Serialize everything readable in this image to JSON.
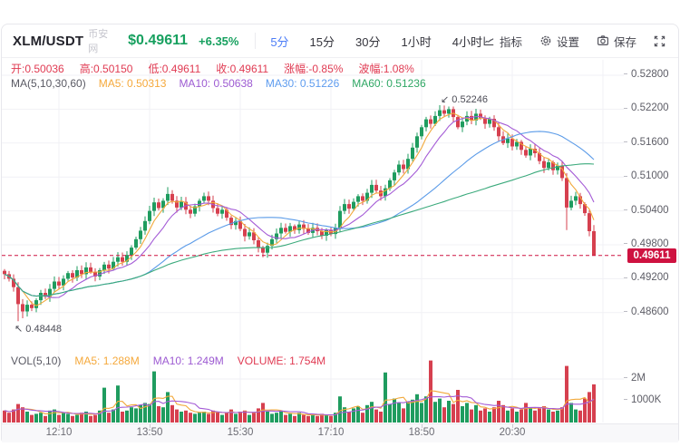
{
  "header": {
    "pair": "XLM/USDT",
    "exchange": "币安网",
    "price": "$0.49611",
    "change": "+6.35%",
    "intervals": [
      "5分",
      "15分",
      "30分",
      "1小时",
      "4小时"
    ],
    "active_interval": "5分",
    "tools": {
      "indicator": "指标",
      "settings": "设置",
      "save": "保存"
    }
  },
  "ohlc": [
    {
      "label": "开",
      "value": "0.50036"
    },
    {
      "label": "高",
      "value": "0.50150"
    },
    {
      "label": "低",
      "value": "0.49611"
    },
    {
      "label": "收",
      "value": "0.49611"
    },
    {
      "label": "涨幅",
      "value": "-0.85%"
    },
    {
      "label": "波幅",
      "value": "1.08%"
    }
  ],
  "ma_legend": [
    {
      "text": "MA(5,10,30,60)",
      "color": "#5a5a64"
    },
    {
      "text": "MA5: 0.50313",
      "color": "#f5a93c"
    },
    {
      "text": "MA10: 0.50638",
      "color": "#9d5bd2"
    },
    {
      "text": "MA30: 0.51226",
      "color": "#5e9cef"
    },
    {
      "text": "MA60: 0.51236",
      "color": "#2fa764"
    }
  ],
  "vol_legend": [
    {
      "text": "VOL(5,10)",
      "color": "#5a5a64"
    },
    {
      "text": "MA5: 1.288M",
      "color": "#f5a93c"
    },
    {
      "text": "MA10: 1.249M",
      "color": "#9d5bd2"
    },
    {
      "text": "VOLUME: 1.754M",
      "color": "#e03a52"
    }
  ],
  "chart_data": {
    "type": "candlestick",
    "title": "XLM/USDT 5分 K线",
    "y_axis_labels": [
      "0.52800",
      "0.52200",
      "0.51600",
      "0.51000",
      "0.50400",
      "0.49800",
      "0.49200",
      "0.48600"
    ],
    "ylim": [
      0.4845,
      0.5285
    ],
    "x_axis_labels": [
      "12:10",
      "13:50",
      "15:30",
      "17:10",
      "18:50",
      "20:30"
    ],
    "volume_axis_labels": [
      "2M",
      "1000K"
    ],
    "price_line": {
      "value": 0.49611,
      "label": "0.49611"
    },
    "annotations": [
      {
        "kind": "high",
        "label": "0.52246",
        "value": 0.52246,
        "index": 98
      },
      {
        "kind": "low",
        "label": "0.48448",
        "value": 0.48448,
        "index": 3
      }
    ],
    "candles": {
      "first_open": 0.4934,
      "closes": [
        0.4928,
        0.492,
        0.4905,
        0.4875,
        0.4862,
        0.4874,
        0.4868,
        0.4882,
        0.4895,
        0.4888,
        0.4902,
        0.4915,
        0.4908,
        0.492,
        0.493,
        0.4922,
        0.4935,
        0.4928,
        0.494,
        0.4932,
        0.4924,
        0.4935,
        0.4945,
        0.4938,
        0.495,
        0.4958,
        0.495,
        0.4962,
        0.4975,
        0.499,
        0.5005,
        0.5022,
        0.504,
        0.5055,
        0.5045,
        0.5058,
        0.507,
        0.5058,
        0.5046,
        0.5056,
        0.5042,
        0.5035,
        0.5048,
        0.5058,
        0.5066,
        0.5058,
        0.5045,
        0.5035,
        0.5042,
        0.5028,
        0.5015,
        0.5022,
        0.5008,
        0.4995,
        0.5002,
        0.4988,
        0.4975,
        0.4966,
        0.4978,
        0.499,
        0.5,
        0.501,
        0.5003,
        0.5013,
        0.5006,
        0.5016,
        0.5008,
        0.5001,
        0.501,
        0.5004,
        0.4996,
        0.5006,
        0.4999,
        0.501,
        0.504,
        0.5052,
        0.5044,
        0.5056,
        0.5066,
        0.5058,
        0.5072,
        0.5086,
        0.5076,
        0.5066,
        0.508,
        0.5094,
        0.5108,
        0.5122,
        0.5114,
        0.5132,
        0.5152,
        0.5172,
        0.5188,
        0.5202,
        0.5194,
        0.5208,
        0.5218,
        0.5212,
        0.522,
        0.5206,
        0.5188,
        0.5198,
        0.5208,
        0.52,
        0.5212,
        0.5204,
        0.5194,
        0.5203,
        0.5188,
        0.5172,
        0.516,
        0.5168,
        0.5154,
        0.5162,
        0.5148,
        0.5138,
        0.515,
        0.5142,
        0.5128,
        0.5116,
        0.5126,
        0.5112,
        0.512,
        0.5098,
        0.5046,
        0.5058,
        0.5066,
        0.5052,
        0.5036,
        0.5004,
        0.49611
      ],
      "wick_overrides": {
        "3": {
          "l": 0.48448
        },
        "4": {
          "l": 0.485
        },
        "36": {
          "h": 0.5082
        },
        "57": {
          "l": 0.4958
        },
        "98": {
          "h": 0.52246
        },
        "124": {
          "l": 0.5006
        },
        "130": {
          "h": 0.5015,
          "l": 0.49611
        }
      }
    },
    "volumes_millions": [
      0.55,
      0.45,
      0.6,
      0.85,
      0.7,
      0.5,
      0.35,
      0.4,
      0.45,
      0.3,
      0.55,
      0.6,
      0.35,
      0.45,
      0.4,
      0.3,
      0.35,
      0.45,
      0.5,
      0.3,
      0.35,
      0.55,
      1.6,
      0.45,
      0.6,
      1.7,
      0.5,
      0.55,
      0.7,
      0.65,
      0.8,
      0.9,
      0.85,
      2.35,
      0.75,
      0.7,
      1.4,
      0.8,
      0.6,
      0.5,
      0.55,
      0.45,
      0.4,
      0.45,
      0.5,
      0.4,
      0.55,
      0.5,
      0.35,
      0.45,
      0.6,
      0.4,
      0.5,
      0.55,
      0.35,
      0.45,
      0.65,
      0.9,
      0.5,
      0.4,
      0.45,
      0.55,
      0.35,
      0.4,
      0.3,
      0.45,
      0.35,
      0.3,
      0.35,
      0.3,
      0.4,
      0.35,
      0.3,
      0.45,
      1.2,
      0.7,
      0.5,
      0.65,
      0.75,
      0.45,
      0.8,
      0.95,
      0.6,
      0.5,
      2.3,
      0.85,
      1.1,
      0.9,
      0.65,
      0.95,
      1.05,
      1.3,
      0.9,
      1.2,
      2.85,
      0.95,
      1.1,
      0.7,
      1.0,
      0.85,
      1.5,
      0.75,
      0.9,
      0.6,
      0.8,
      0.55,
      0.65,
      0.5,
      0.7,
      1.0,
      0.8,
      0.55,
      0.65,
      0.5,
      0.6,
      0.9,
      0.7,
      0.55,
      0.65,
      0.75,
      0.6,
      0.5,
      0.55,
      0.7,
      2.6,
      0.9,
      0.6,
      0.55,
      1.1,
      1.4,
      1.754
    ],
    "ma_periods": [
      5,
      10,
      30,
      60
    ],
    "volume_ma_periods": [
      5,
      10
    ],
    "colors": {
      "up": "#1f9c5f",
      "down": "#d6404f",
      "ma5": "#f2a93b",
      "ma10": "#a45bd6",
      "ma30": "#5b9be8",
      "ma60": "#3baa7c",
      "price_line": "#ce1240",
      "grid": "#f1f1f5"
    }
  }
}
